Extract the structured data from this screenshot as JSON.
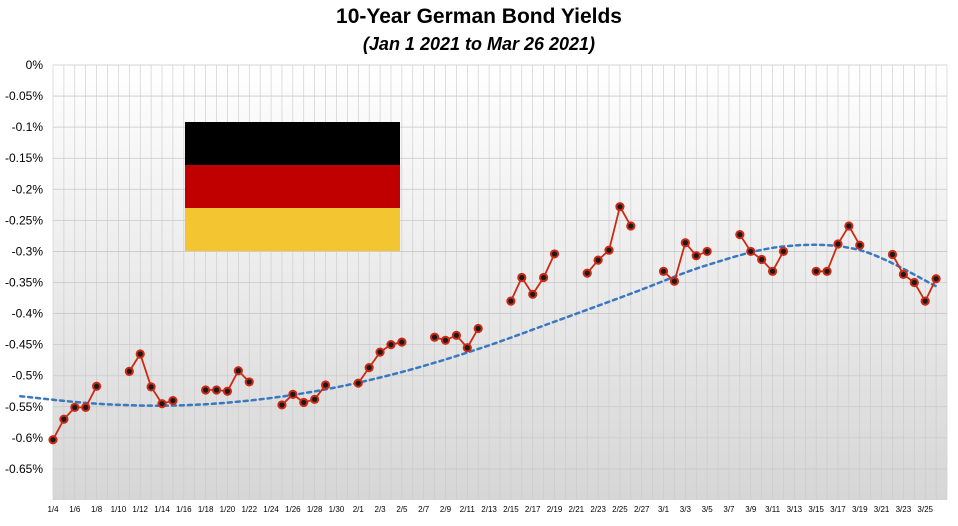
{
  "chart_data": {
    "type": "line",
    "title": "10-Year German Bond Yields",
    "subtitle": "(Jan 1 2021 to Mar 26 2021)",
    "xlabel": "",
    "ylabel": "",
    "ylim": [
      -0.7,
      0.0
    ],
    "yticks": [
      0,
      -0.05,
      -0.1,
      -0.15,
      -0.2,
      -0.25,
      -0.3,
      -0.35,
      -0.4,
      -0.45,
      -0.5,
      -0.55,
      -0.6,
      -0.65
    ],
    "ytick_labels": [
      "0%",
      "-0.05%",
      "-0.1%",
      "-0.15%",
      "-0.2%",
      "-0.25%",
      "-0.3%",
      "-0.35%",
      "-0.4%",
      "-0.45%",
      "-0.5%",
      "-0.55%",
      "-0.6%",
      "-0.65%"
    ],
    "x_date_range": [
      "2021-01-04",
      "2021-03-27"
    ],
    "xtick_labels": [
      "1/4",
      "1/6",
      "1/8",
      "1/10",
      "1/12",
      "1/14",
      "1/16",
      "1/18",
      "1/20",
      "1/22",
      "1/24",
      "1/26",
      "1/28",
      "1/30",
      "2/1",
      "2/3",
      "2/5",
      "2/7",
      "2/9",
      "2/11",
      "2/13",
      "2/15",
      "2/17",
      "2/19",
      "2/21",
      "2/23",
      "2/25",
      "2/27",
      "3/1",
      "3/3",
      "3/5",
      "3/7",
      "3/9",
      "3/11",
      "3/13",
      "3/15",
      "3/17",
      "3/19",
      "3/21",
      "3/23",
      "3/25"
    ],
    "grid": true,
    "legend": "none",
    "series": [
      {
        "values": [
          [
            [
              "2021-01-04",
              -0.603
            ],
            [
              "2021-01-05",
              -0.57
            ],
            [
              "2021-01-06",
              -0.551
            ],
            [
              "2021-01-07",
              -0.551
            ],
            [
              "2021-01-08",
              -0.517
            ]
          ],
          [
            [
              "2021-01-11",
              -0.493
            ],
            [
              "2021-01-12",
              -0.465
            ],
            [
              "2021-01-13",
              -0.518
            ],
            [
              "2021-01-14",
              -0.545
            ],
            [
              "2021-01-15",
              -0.54
            ]
          ],
          [
            [
              "2021-01-18",
              -0.523
            ],
            [
              "2021-01-19",
              -0.523
            ],
            [
              "2021-01-20",
              -0.525
            ],
            [
              "2021-01-21",
              -0.492
            ],
            [
              "2021-01-22",
              -0.51
            ]
          ],
          [
            [
              "2021-01-25",
              -0.547
            ],
            [
              "2021-01-26",
              -0.53
            ],
            [
              "2021-01-27",
              -0.543
            ],
            [
              "2021-01-28",
              -0.538
            ],
            [
              "2021-01-29",
              -0.515
            ]
          ],
          [
            [
              "2021-02-01",
              -0.512
            ],
            [
              "2021-02-02",
              -0.487
            ],
            [
              "2021-02-03",
              -0.462
            ],
            [
              "2021-02-04",
              -0.45
            ],
            [
              "2021-02-05",
              -0.446
            ]
          ],
          [
            [
              "2021-02-08",
              -0.438
            ],
            [
              "2021-02-09",
              -0.443
            ],
            [
              "2021-02-10",
              -0.435
            ],
            [
              "2021-02-11",
              -0.455
            ],
            [
              "2021-02-12",
              -0.424
            ]
          ],
          [
            [
              "2021-02-15",
              -0.38
            ],
            [
              "2021-02-16",
              -0.342
            ],
            [
              "2021-02-17",
              -0.369
            ],
            [
              "2021-02-18",
              -0.342
            ],
            [
              "2021-02-19",
              -0.304
            ]
          ],
          [
            [
              "2021-02-22",
              -0.335
            ],
            [
              "2021-02-23",
              -0.314
            ],
            [
              "2021-02-24",
              -0.298
            ],
            [
              "2021-02-25",
              -0.228
            ],
            [
              "2021-02-26",
              -0.259
            ]
          ],
          [
            [
              "2021-03-01",
              -0.332
            ],
            [
              "2021-03-02",
              -0.348
            ],
            [
              "2021-03-03",
              -0.286
            ],
            [
              "2021-03-04",
              -0.307
            ],
            [
              "2021-03-05",
              -0.3
            ]
          ],
          [
            [
              "2021-03-08",
              -0.273
            ],
            [
              "2021-03-09",
              -0.3
            ],
            [
              "2021-03-10",
              -0.313
            ],
            [
              "2021-03-11",
              -0.332
            ],
            [
              "2021-03-12",
              -0.3
            ]
          ],
          [
            [
              "2021-03-15",
              -0.332
            ],
            [
              "2021-03-16",
              -0.332
            ],
            [
              "2021-03-17",
              -0.288
            ],
            [
              "2021-03-18",
              -0.259
            ],
            [
              "2021-03-19",
              -0.29
            ]
          ],
          [
            [
              "2021-03-22",
              -0.305
            ],
            [
              "2021-03-23",
              -0.337
            ],
            [
              "2021-03-24",
              -0.35
            ],
            [
              "2021-03-25",
              -0.38
            ],
            [
              "2021-03-26",
              -0.344
            ]
          ]
        ]
      }
    ],
    "trendline": {
      "style": "dotted",
      "points": [
        [
          "2021-01-01",
          -0.533
        ],
        [
          "2021-01-08",
          -0.545
        ],
        [
          "2021-01-15",
          -0.548
        ],
        [
          "2021-01-22",
          -0.54
        ],
        [
          "2021-01-29",
          -0.522
        ],
        [
          "2021-02-05",
          -0.494
        ],
        [
          "2021-02-12",
          -0.457
        ],
        [
          "2021-02-19",
          -0.413
        ],
        [
          "2021-02-26",
          -0.368
        ],
        [
          "2021-03-05",
          -0.322
        ],
        [
          "2021-03-12",
          -0.292
        ],
        [
          "2021-03-19",
          -0.298
        ],
        [
          "2021-03-26",
          -0.356
        ]
      ]
    },
    "colors": {
      "line": "#cc2a14",
      "marker_fill": "#1a1a1a",
      "marker_ring": "#cc2a14",
      "trendline": "#3a78c0",
      "grid": "#c9c9c9",
      "bg_top": "#ffffff",
      "bg_bottom": "#d6d6d6"
    }
  },
  "flag": {
    "name": "Germany flag",
    "stripes": [
      "#000000",
      "#c00000",
      "#f2c531"
    ]
  }
}
